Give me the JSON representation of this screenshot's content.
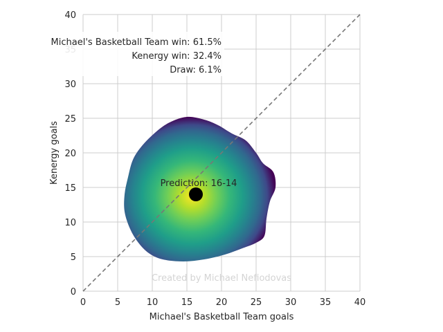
{
  "chart_data": {
    "type": "heatmap",
    "xlabel": "Michael's Basketball Team goals",
    "ylabel": "Kenergy goals",
    "xlim": [
      0,
      40
    ],
    "ylim": [
      0,
      40
    ],
    "xticks": [
      0,
      5,
      10,
      15,
      20,
      25,
      30,
      35,
      40
    ],
    "yticks": [
      0,
      5,
      10,
      15,
      20,
      25,
      30,
      35,
      40
    ],
    "grid": true,
    "colormap": "viridis",
    "density_center": [
      15,
      13
    ],
    "density_extent": {
      "x": [
        6,
        28
      ],
      "y": [
        4,
        25
      ]
    },
    "prediction": {
      "x": 16.3,
      "y": 14,
      "label": "Prediction: 16-14"
    },
    "diagonal": {
      "from": [
        0,
        0
      ],
      "to": [
        40,
        40
      ],
      "color": "#777777",
      "style": "dashed"
    },
    "stats": [
      "Michael's Basketball Team win: 61.5%",
      "Kenergy win: 32.4%",
      "Draw: 6.1%"
    ],
    "watermark": "Created by Michael Nefiodovas",
    "marker_color": "#000000"
  }
}
